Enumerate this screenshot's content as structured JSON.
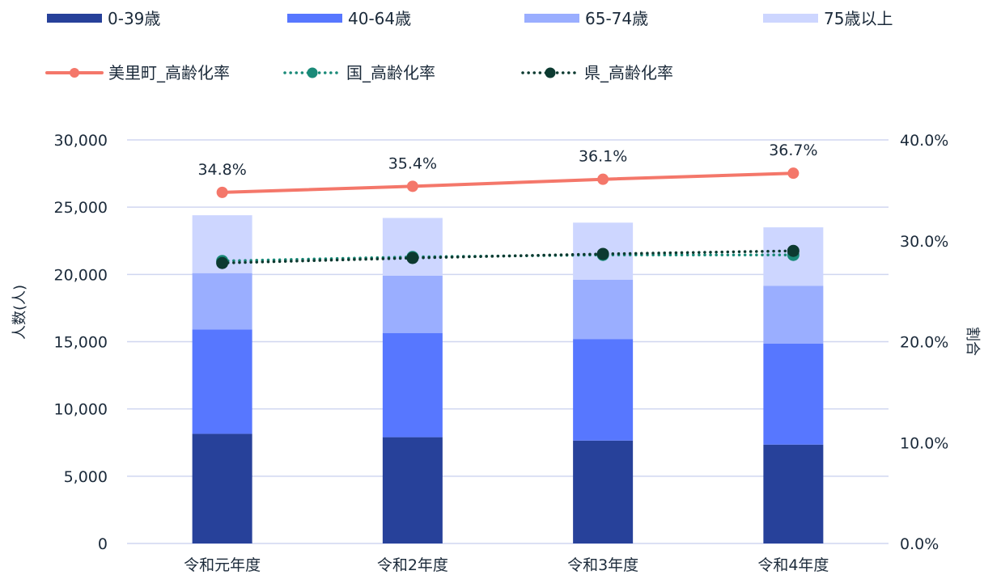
{
  "chart_data": {
    "type": "bar",
    "stacked": true,
    "categories": [
      "令和元年度",
      "令和2年度",
      "令和3年度",
      "令和4年度"
    ],
    "bar_series": [
      {
        "name": "0-39歳",
        "color": "#27419a",
        "values": [
          8150,
          7900,
          7650,
          7350
        ]
      },
      {
        "name": "40-64歳",
        "color": "#5777ff",
        "values": [
          7750,
          7750,
          7550,
          7500
        ]
      },
      {
        "name": "65-74歳",
        "color": "#9aaeff",
        "values": [
          4200,
          4250,
          4400,
          4300
        ]
      },
      {
        "name": "75歳以上",
        "color": "#cdd6ff",
        "values": [
          4300,
          4300,
          4250,
          4350
        ]
      }
    ],
    "line_series": [
      {
        "name": "美里町_高齢化率",
        "color": "#f4776a",
        "style": "solid",
        "values": [
          34.8,
          35.4,
          36.1,
          36.7
        ],
        "labels": [
          "34.8%",
          "35.4%",
          "36.1%",
          "36.7%"
        ]
      },
      {
        "name": "国_高齢化率",
        "color": "#1a8a78",
        "style": "dotted",
        "values": [
          28.0,
          28.4,
          28.6,
          28.6
        ]
      },
      {
        "name": "県_高齢化率",
        "color": "#0c3a30",
        "style": "dotted",
        "values": [
          27.8,
          28.3,
          28.7,
          29.0
        ]
      }
    ],
    "y_left": {
      "label": "人数(人)",
      "min": 0,
      "max": 30000,
      "ticks": [
        "0",
        "5,000",
        "10,000",
        "15,000",
        "20,000",
        "25,000",
        "30,000"
      ]
    },
    "y_right": {
      "label": "割合",
      "min": 0,
      "max": 40,
      "ticks": [
        "0.0%",
        "10.0%",
        "20.0%",
        "30.0%",
        "40.0%"
      ]
    },
    "grid": true,
    "legend_position": "top"
  }
}
